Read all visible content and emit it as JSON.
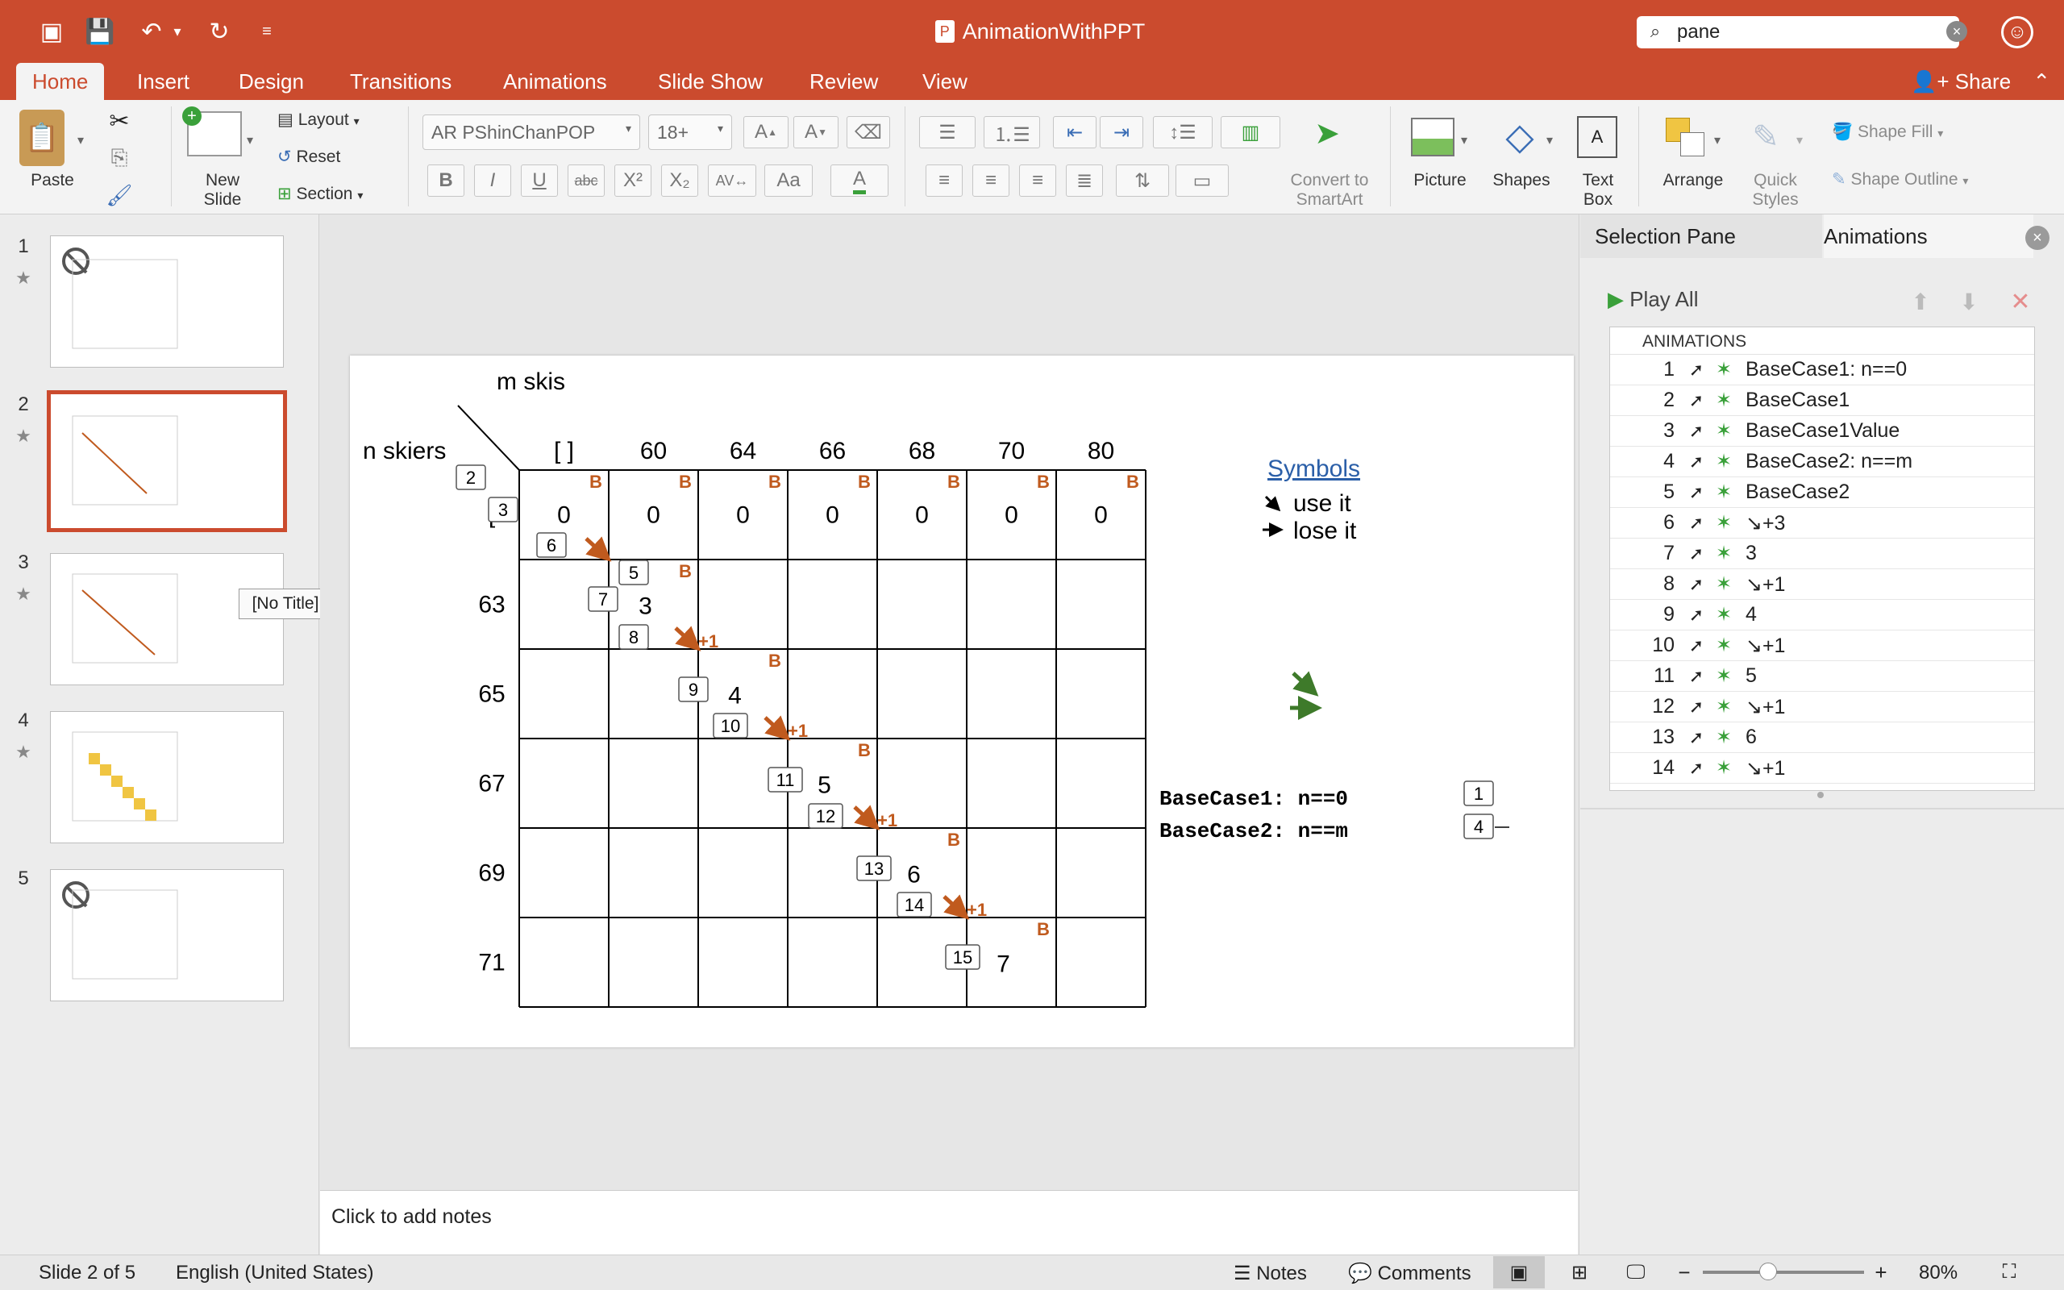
{
  "window": {
    "title": "AnimationWithPPT"
  },
  "search": {
    "value": "pane"
  },
  "tabs": [
    "Home",
    "Insert",
    "Design",
    "Transitions",
    "Animations",
    "Slide Show",
    "Review",
    "View"
  ],
  "share_label": "Share",
  "ribbon": {
    "paste": "Paste",
    "new_slide_1": "New",
    "new_slide_2": "Slide",
    "layout": "Layout",
    "reset": "Reset",
    "section": "Section",
    "font_name": "AR PShinChanPOP",
    "font_size": "18+",
    "convert_1": "Convert to",
    "convert_2": "SmartArt",
    "picture": "Picture",
    "shapes": "Shapes",
    "textbox_1": "Text",
    "textbox_2": "Box",
    "arrange": "Arrange",
    "quick_1": "Quick",
    "quick_2": "Styles",
    "shape_fill": "Shape Fill",
    "shape_outline": "Shape Outline"
  },
  "thumbnails": [
    {
      "num": "1"
    },
    {
      "num": "2"
    },
    {
      "num": "3"
    },
    {
      "num": "4"
    },
    {
      "num": "5"
    }
  ],
  "tooltip": "[No Title]",
  "slide": {
    "m_skis": "m skis",
    "n_skiers": "n skiers",
    "col_headers": [
      "[ ]",
      "60",
      "64",
      "66",
      "68",
      "70",
      "80"
    ],
    "row_headers": [
      "[",
      "63",
      "65",
      "67",
      "69",
      "71"
    ],
    "zero": "0",
    "b": "B",
    "diag_values": [
      "3",
      "4",
      "5",
      "6",
      "7"
    ],
    "plus": "+1",
    "symbols_title": "Symbols",
    "use_it": "use it",
    "lose_it": "lose it",
    "bc1": "BaseCase1:  n==0",
    "bc2": "BaseCase2:  n==m",
    "tags": [
      "1",
      "2",
      "3",
      "4",
      "5",
      "6",
      "7",
      "8",
      "9",
      "10",
      "11",
      "12",
      "13",
      "14",
      "15"
    ]
  },
  "notes_placeholder": "Click to add notes",
  "right_pane": {
    "tab_selection": "Selection Pane",
    "tab_animations": "Animations",
    "play_all": "Play All",
    "header": "ANIMATIONS",
    "items": [
      {
        "n": "1",
        "name": "BaseCase1: n==0"
      },
      {
        "n": "2",
        "name": "BaseCase1"
      },
      {
        "n": "3",
        "name": "BaseCase1Value"
      },
      {
        "n": "4",
        "name": "BaseCase2: n==m"
      },
      {
        "n": "5",
        "name": "BaseCase2"
      },
      {
        "n": "6",
        "name": "↘+3"
      },
      {
        "n": "7",
        "name": "3"
      },
      {
        "n": "8",
        "name": "↘+1"
      },
      {
        "n": "9",
        "name": "4"
      },
      {
        "n": "10",
        "name": "↘+1"
      },
      {
        "n": "11",
        "name": "5"
      },
      {
        "n": "12",
        "name": "↘+1"
      },
      {
        "n": "13",
        "name": "6"
      },
      {
        "n": "14",
        "name": "↘+1"
      }
    ]
  },
  "status": {
    "slide": "Slide 2 of 5",
    "language": "English (United States)",
    "notes": "Notes",
    "comments": "Comments",
    "zoom": "80%"
  },
  "colors": {
    "accent": "#cb4b2e",
    "arrow": "#c05a1e",
    "green": "#3aa03a"
  }
}
